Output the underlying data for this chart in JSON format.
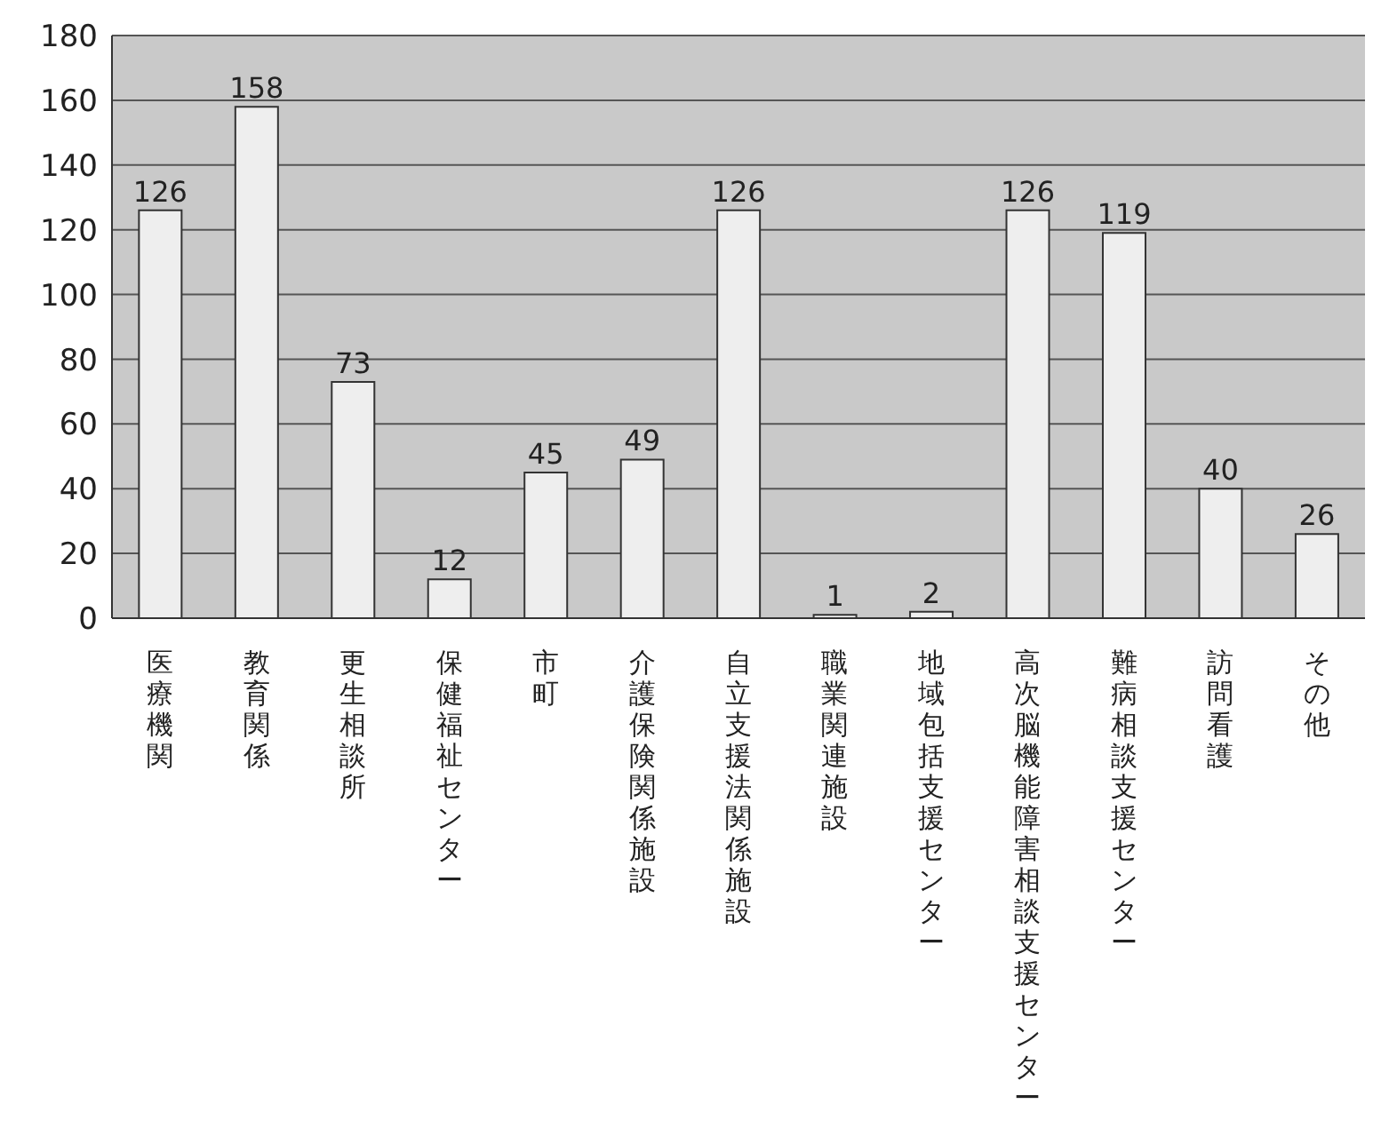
{
  "chart_data": {
    "type": "bar",
    "categories": [
      "医療機関",
      "教育関係",
      "更生相談所",
      "保健福祉センター",
      "市町",
      "介護保険関係施設",
      "自立支援法関係施設",
      "職業関連施設",
      "地域包括支援センター",
      "高次脳機能障害相談支援センター",
      "難病相談支援センター",
      "訪問看護",
      "その他"
    ],
    "values": [
      126,
      158,
      73,
      12,
      45,
      49,
      126,
      1,
      2,
      126,
      119,
      40,
      26
    ],
    "color": "#eeeeee",
    "ylim": [
      0,
      180
    ],
    "yticks": [
      0,
      20,
      40,
      60,
      80,
      100,
      120,
      140,
      160,
      180
    ],
    "grid": "y",
    "data_labels": true
  }
}
